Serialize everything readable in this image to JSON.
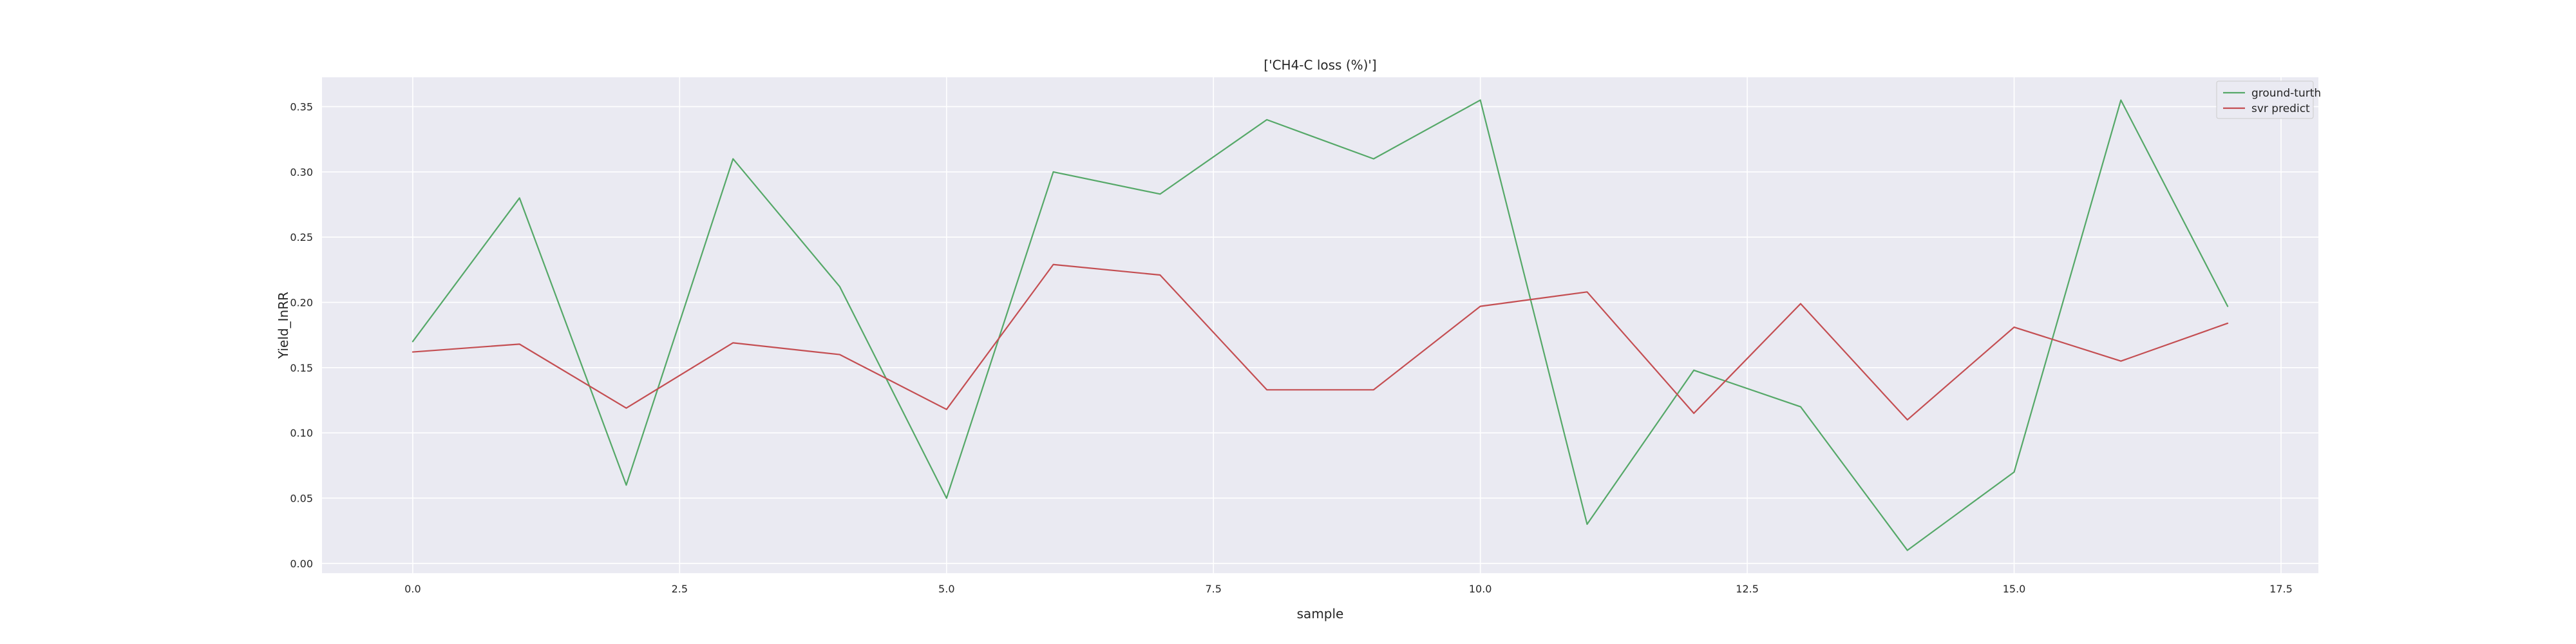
{
  "chart_data": {
    "type": "line",
    "title": "['CH4-C loss (%)']",
    "xlabel": "sample",
    "ylabel": "Yield_InRR",
    "xlim": [
      -0.85,
      17.85
    ],
    "ylim": [
      -0.0075,
      0.3725
    ],
    "xticks": [
      0.0,
      2.5,
      5.0,
      7.5,
      10.0,
      12.5,
      15.0,
      17.5
    ],
    "xtick_labels": [
      "0.0",
      "2.5",
      "5.0",
      "7.5",
      "10.0",
      "12.5",
      "15.0",
      "17.5"
    ],
    "yticks": [
      0.0,
      0.05,
      0.1,
      0.15,
      0.2,
      0.25,
      0.3,
      0.35
    ],
    "ytick_labels": [
      "0.00",
      "0.05",
      "0.10",
      "0.15",
      "0.20",
      "0.25",
      "0.30",
      "0.35"
    ],
    "grid": true,
    "legend_position": "top-right",
    "x": [
      0,
      1,
      2,
      3,
      4,
      5,
      6,
      7,
      8,
      9,
      10,
      11,
      12,
      13,
      14,
      15,
      16,
      17
    ],
    "series": [
      {
        "name": "ground-turth",
        "color": "#55a868",
        "values": [
          0.17,
          0.28,
          0.06,
          0.31,
          0.212,
          0.05,
          0.3,
          0.283,
          0.34,
          0.31,
          0.355,
          0.03,
          0.148,
          0.12,
          0.01,
          0.07,
          0.355,
          0.197
        ]
      },
      {
        "name": "svr predict",
        "color": "#c44e52",
        "values": [
          0.162,
          0.168,
          0.119,
          0.169,
          0.16,
          0.118,
          0.229,
          0.221,
          0.133,
          0.133,
          0.197,
          0.208,
          0.115,
          0.199,
          0.11,
          0.181,
          0.155,
          0.184
        ]
      }
    ]
  },
  "style": {
    "plot_background": "#eaeaf2",
    "grid_color": "#ffffff",
    "text_color": "#262626"
  }
}
